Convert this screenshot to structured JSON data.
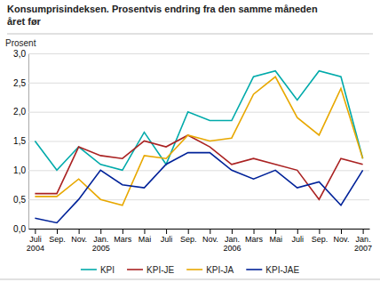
{
  "chart_data": {
    "type": "line",
    "title": "Konsumprisindeksen. Prosentvis endring fra den samme måneden\nåret før",
    "ylabel": "Prosent",
    "categories": [
      "Juli\n2004",
      "Sep.",
      "Nov.",
      "Jan.\n2005",
      "Mars",
      "Mai",
      "Juli",
      "Sep.",
      "Nov.",
      "Jan.\n2006",
      "Mars",
      "Mai",
      "Juli",
      "Sep.",
      "Nov.",
      "Jan.\n2007"
    ],
    "series": [
      {
        "name": "KPI",
        "color": "#00AAAA",
        "values": [
          1.5,
          1.0,
          1.4,
          1.1,
          1.0,
          1.65,
          1.1,
          2.0,
          1.85,
          1.85,
          2.6,
          2.7,
          2.2,
          2.7,
          2.6,
          1.2
        ]
      },
      {
        "name": "KPI-JE",
        "color": "#AA2222",
        "values": [
          0.6,
          0.6,
          1.4,
          1.25,
          1.2,
          1.5,
          1.4,
          1.6,
          1.4,
          1.1,
          1.2,
          1.1,
          1.0,
          0.5,
          1.2,
          1.1
        ]
      },
      {
        "name": "KPI-JA",
        "color": "#E8A800",
        "values": [
          0.55,
          0.55,
          0.85,
          0.5,
          0.4,
          1.25,
          1.2,
          1.6,
          1.5,
          1.55,
          2.3,
          2.6,
          1.9,
          1.6,
          2.4,
          1.2
        ]
      },
      {
        "name": "KPI-JAE",
        "color": "#002299",
        "values": [
          0.18,
          0.1,
          0.5,
          1.0,
          0.75,
          0.7,
          1.1,
          1.3,
          1.3,
          1.0,
          0.85,
          1.0,
          0.7,
          0.8,
          0.4,
          1.0
        ]
      }
    ],
    "ylim": [
      0.0,
      3.0
    ],
    "yticks": [
      {
        "value": 0.0,
        "label": "0,0"
      },
      {
        "value": 0.5,
        "label": "0,5"
      },
      {
        "value": 1.0,
        "label": "1,0"
      },
      {
        "value": 1.5,
        "label": "1,5"
      },
      {
        "value": 2.0,
        "label": "2,0"
      },
      {
        "value": 2.5,
        "label": "2,5"
      },
      {
        "value": 3.0,
        "label": "3,0"
      }
    ],
    "grid": true,
    "legend": "bottom"
  }
}
